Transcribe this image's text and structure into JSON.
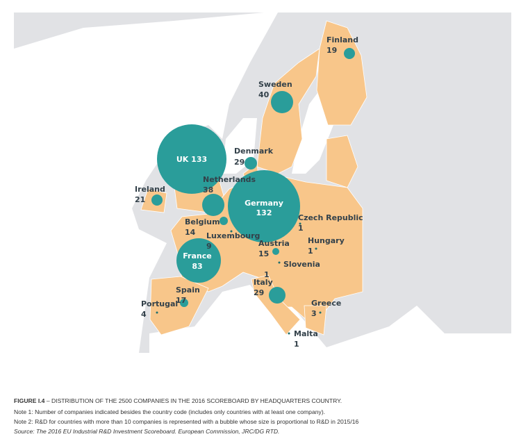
{
  "map": {
    "countries": [
      {
        "name": "Finland",
        "count": 19
      },
      {
        "name": "Sweden",
        "count": 40
      },
      {
        "name": "Denmark",
        "count": 29
      },
      {
        "name": "UK",
        "count": 133
      },
      {
        "name": "Ireland",
        "count": 21
      },
      {
        "name": "Netherlands",
        "count": 38
      },
      {
        "name": "Germany",
        "count": 132
      },
      {
        "name": "Belgium",
        "count": 14
      },
      {
        "name": "Czech Republic",
        "count": 1
      },
      {
        "name": "Luxembourg",
        "count": 9
      },
      {
        "name": "Austria",
        "count": 15
      },
      {
        "name": "Hungary",
        "count": 1
      },
      {
        "name": "France",
        "count": 83
      },
      {
        "name": "Slovenia",
        "count": 1
      },
      {
        "name": "Italy",
        "count": 29
      },
      {
        "name": "Spain",
        "count": 17
      },
      {
        "name": "Portugal",
        "count": 4
      },
      {
        "name": "Greece",
        "count": 3
      },
      {
        "name": "Malta",
        "count": 1
      }
    ]
  },
  "caption": {
    "figure": "FIGURE I.4",
    "title": "– DISTRIBUTION OF THE 2500 COMPANIES IN THE 2016 SCOREBOARD BY HEADQUARTERS COUNTRY.",
    "note1": "Note 1: Number of companies indicated besides the country code (includes only countries with at least one company).",
    "note2": "Note 2: R&D for countries with more than 10 companies is represented with a bubble whose size is proportional to R&D in 2015/16",
    "source": "Source: The 2016 EU Industrial R&D Investment Scoreboard. European Commission, JRC/DG RTD."
  }
}
